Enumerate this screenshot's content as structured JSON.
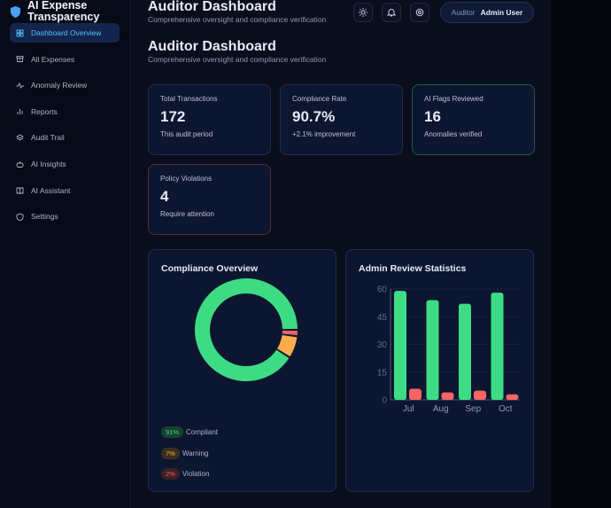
{
  "brand": {
    "title_line1": "AI Expense",
    "title_line2": "Transparency"
  },
  "sidebar": {
    "items": [
      {
        "label": "Dashboard Overview",
        "icon": "grid-icon",
        "active": true
      },
      {
        "label": "All Expenses",
        "icon": "archive-icon"
      },
      {
        "label": "Anomaly Review",
        "icon": "activity-icon"
      },
      {
        "label": "Reports",
        "icon": "bar-chart-icon"
      },
      {
        "label": "Audit Trail",
        "icon": "layers-icon"
      },
      {
        "label": "AI Insights",
        "icon": "bot-icon"
      },
      {
        "label": "AI Assistant",
        "icon": "book-icon"
      },
      {
        "label": "Settings",
        "icon": "shield-icon"
      }
    ]
  },
  "topbar": {
    "title": "Auditor Dashboard",
    "subtitle": "Comprehensive oversight and compliance verification",
    "role": "Auditor",
    "user": "Admin User"
  },
  "page": {
    "title": "Auditor Dashboard",
    "subtitle": "Comprehensive oversight and compliance verification"
  },
  "cards": [
    {
      "label": "Total Transactions",
      "value": "172",
      "note": "This audit period"
    },
    {
      "label": "Compliance Rate",
      "value": "90.7%",
      "note": "+2.1% improvement"
    },
    {
      "label": "AI Flags Reviewed",
      "value": "16",
      "note": "Anomalies verified"
    },
    {
      "label": "Policy Violations",
      "value": "4",
      "note": "Require attention"
    }
  ],
  "colors": {
    "green": "#3ddc84",
    "orange": "#fbad4e",
    "red": "#f56565",
    "accent": "#4fc3f7"
  },
  "chart_data": [
    {
      "type": "pie",
      "title": "Compliance Overview",
      "donut": true,
      "slices": [
        {
          "label": "Compliant",
          "value": 91,
          "display": "91%",
          "color": "#3ddc84"
        },
        {
          "label": "Warning",
          "value": 7,
          "display": "7%",
          "color": "#fbad4e"
        },
        {
          "label": "Violation",
          "value": 2,
          "display": "2%",
          "color": "#f56565"
        }
      ]
    },
    {
      "type": "bar",
      "title": "Admin Review Statistics",
      "categories": [
        "Jul",
        "Aug",
        "Sep",
        "Oct"
      ],
      "series": [
        {
          "values": [
            59,
            54,
            52,
            58
          ],
          "color": "#3ddc84"
        },
        {
          "values": [
            6,
            4,
            5,
            3
          ],
          "color": "#f56565"
        }
      ],
      "ylim": [
        0,
        60
      ],
      "yticks": [
        "0",
        "15",
        "30",
        "45",
        "60"
      ],
      "grid": true
    }
  ]
}
